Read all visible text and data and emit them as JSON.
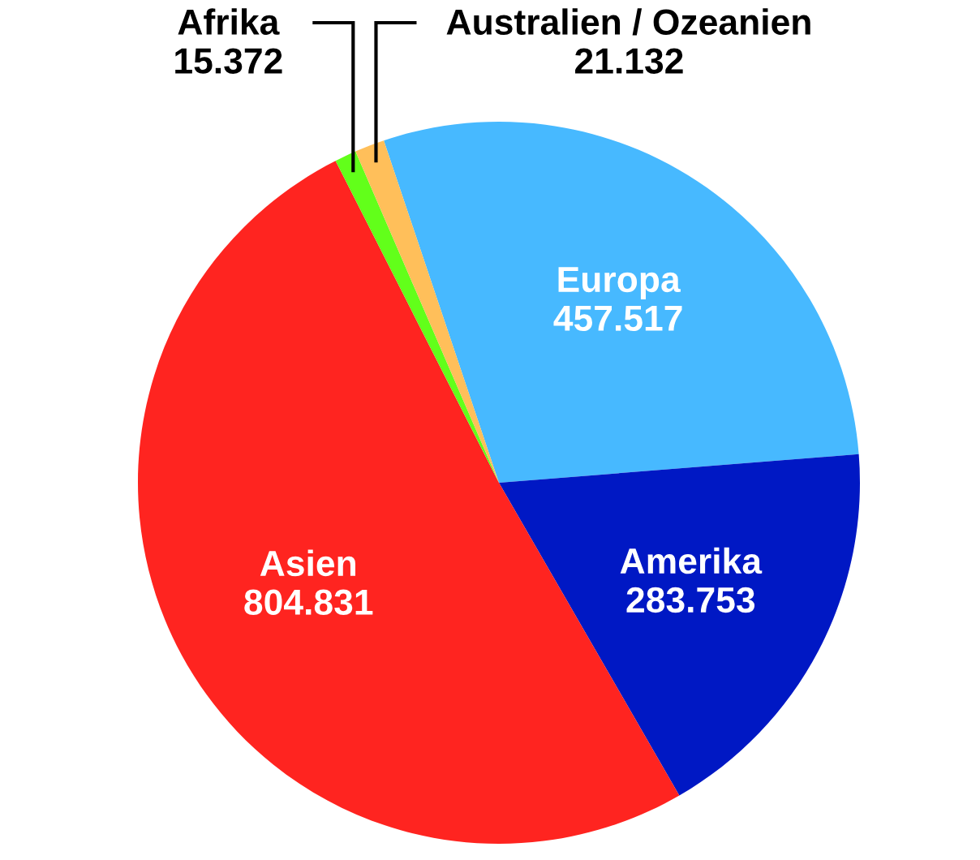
{
  "chart_data": {
    "type": "pie",
    "categories": [
      "Europa",
      "Amerika",
      "Asien",
      "Afrika",
      "Australien / Ozeanien"
    ],
    "values": [
      457517,
      283753,
      804831,
      15372,
      21132
    ],
    "value_labels": [
      "457.517",
      "283.753",
      "804.831",
      "15.372",
      "21.132"
    ],
    "colors": [
      "#47b9ff",
      "#0018c4",
      "#ff2420",
      "#62ff1a",
      "#ffbf5a"
    ]
  }
}
